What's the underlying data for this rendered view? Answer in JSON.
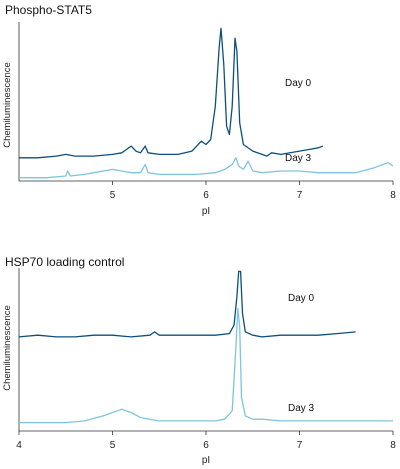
{
  "colors": {
    "day0": "#0d4f7c",
    "day3": "#7fc4de"
  },
  "chart_data": [
    {
      "type": "line",
      "title": "Phospho-STAT5",
      "xlabel": "pI",
      "ylabel": "Chemiluminescence",
      "xlim": [
        4,
        8
      ],
      "xticks": [
        5,
        6,
        7,
        8
      ],
      "grid": false,
      "series": [
        {
          "name": "Day 0",
          "color_key": "day0",
          "points": [
            [
              4.0,
              0.14
            ],
            [
              4.2,
              0.14
            ],
            [
              4.4,
              0.15
            ],
            [
              4.5,
              0.16
            ],
            [
              4.6,
              0.15
            ],
            [
              4.8,
              0.15
            ],
            [
              5.0,
              0.16
            ],
            [
              5.1,
              0.17
            ],
            [
              5.2,
              0.21
            ],
            [
              5.25,
              0.18
            ],
            [
              5.3,
              0.17
            ],
            [
              5.35,
              0.21
            ],
            [
              5.38,
              0.17
            ],
            [
              5.5,
              0.16
            ],
            [
              5.7,
              0.16
            ],
            [
              5.85,
              0.18
            ],
            [
              5.95,
              0.24
            ],
            [
              6.0,
              0.22
            ],
            [
              6.05,
              0.25
            ],
            [
              6.1,
              0.45
            ],
            [
              6.14,
              0.8
            ],
            [
              6.16,
              0.92
            ],
            [
              6.19,
              0.7
            ],
            [
              6.22,
              0.33
            ],
            [
              6.25,
              0.28
            ],
            [
              6.28,
              0.45
            ],
            [
              6.31,
              0.86
            ],
            [
              6.33,
              0.78
            ],
            [
              6.36,
              0.35
            ],
            [
              6.4,
              0.22
            ],
            [
              6.5,
              0.18
            ],
            [
              6.6,
              0.16
            ],
            [
              6.65,
              0.15
            ],
            [
              6.7,
              0.17
            ],
            [
              6.8,
              0.16
            ],
            [
              7.0,
              0.18
            ],
            [
              7.1,
              0.19
            ],
            [
              7.2,
              0.2
            ],
            [
              7.25,
              0.21
            ]
          ]
        },
        {
          "name": "Day 3",
          "color_key": "day3",
          "points": [
            [
              4.0,
              0.02
            ],
            [
              4.3,
              0.02
            ],
            [
              4.5,
              0.03
            ],
            [
              4.52,
              0.06
            ],
            [
              4.55,
              0.03
            ],
            [
              4.7,
              0.04
            ],
            [
              4.8,
              0.05
            ],
            [
              5.0,
              0.07
            ],
            [
              5.1,
              0.06
            ],
            [
              5.2,
              0.05
            ],
            [
              5.3,
              0.05
            ],
            [
              5.35,
              0.1
            ],
            [
              5.38,
              0.05
            ],
            [
              5.5,
              0.04
            ],
            [
              5.7,
              0.04
            ],
            [
              5.9,
              0.04
            ],
            [
              6.1,
              0.05
            ],
            [
              6.2,
              0.07
            ],
            [
              6.28,
              0.1
            ],
            [
              6.32,
              0.14
            ],
            [
              6.35,
              0.09
            ],
            [
              6.4,
              0.07
            ],
            [
              6.45,
              0.12
            ],
            [
              6.5,
              0.06
            ],
            [
              6.6,
              0.05
            ],
            [
              6.8,
              0.06
            ],
            [
              6.9,
              0.06
            ],
            [
              7.0,
              0.06
            ],
            [
              7.2,
              0.05
            ],
            [
              7.4,
              0.05
            ],
            [
              7.6,
              0.05
            ],
            [
              7.8,
              0.08
            ],
            [
              7.95,
              0.11
            ],
            [
              8.0,
              0.09
            ]
          ]
        }
      ]
    },
    {
      "type": "line",
      "title": "HSP70 loading control",
      "xlabel": "pI",
      "ylabel": "Chemiluminescence",
      "xlim": [
        4,
        8
      ],
      "xticks": [
        4,
        5,
        6,
        7,
        8
      ],
      "grid": false,
      "series": [
        {
          "name": "Day 0",
          "color_key": "day0",
          "points": [
            [
              4.0,
              0.56
            ],
            [
              4.2,
              0.57
            ],
            [
              4.4,
              0.56
            ],
            [
              4.6,
              0.56
            ],
            [
              4.8,
              0.57
            ],
            [
              5.0,
              0.57
            ],
            [
              5.2,
              0.56
            ],
            [
              5.4,
              0.57
            ],
            [
              5.45,
              0.59
            ],
            [
              5.5,
              0.57
            ],
            [
              5.7,
              0.57
            ],
            [
              5.9,
              0.57
            ],
            [
              6.1,
              0.57
            ],
            [
              6.25,
              0.58
            ],
            [
              6.3,
              0.63
            ],
            [
              6.33,
              0.8
            ],
            [
              6.35,
              0.95
            ],
            [
              6.37,
              0.95
            ],
            [
              6.39,
              0.7
            ],
            [
              6.42,
              0.59
            ],
            [
              6.5,
              0.57
            ],
            [
              6.6,
              0.56
            ],
            [
              6.8,
              0.57
            ],
            [
              7.0,
              0.57
            ],
            [
              7.2,
              0.57
            ],
            [
              7.4,
              0.58
            ],
            [
              7.6,
              0.59
            ]
          ]
        },
        {
          "name": "Day 3",
          "color_key": "day3",
          "points": [
            [
              4.0,
              0.05
            ],
            [
              4.3,
              0.05
            ],
            [
              4.5,
              0.05
            ],
            [
              4.7,
              0.06
            ],
            [
              4.9,
              0.09
            ],
            [
              5.0,
              0.11
            ],
            [
              5.05,
              0.12
            ],
            [
              5.1,
              0.13
            ],
            [
              5.2,
              0.11
            ],
            [
              5.3,
              0.08
            ],
            [
              5.5,
              0.06
            ],
            [
              5.7,
              0.06
            ],
            [
              5.9,
              0.06
            ],
            [
              6.1,
              0.06
            ],
            [
              6.2,
              0.07
            ],
            [
              6.28,
              0.12
            ],
            [
              6.32,
              0.5
            ],
            [
              6.34,
              0.73
            ],
            [
              6.36,
              0.62
            ],
            [
              6.38,
              0.2
            ],
            [
              6.42,
              0.09
            ],
            [
              6.5,
              0.07
            ],
            [
              6.6,
              0.07
            ],
            [
              6.8,
              0.06
            ],
            [
              7.0,
              0.06
            ],
            [
              7.2,
              0.06
            ],
            [
              7.4,
              0.06
            ],
            [
              7.6,
              0.06
            ],
            [
              7.8,
              0.06
            ],
            [
              8.0,
              0.06
            ]
          ]
        }
      ]
    }
  ]
}
